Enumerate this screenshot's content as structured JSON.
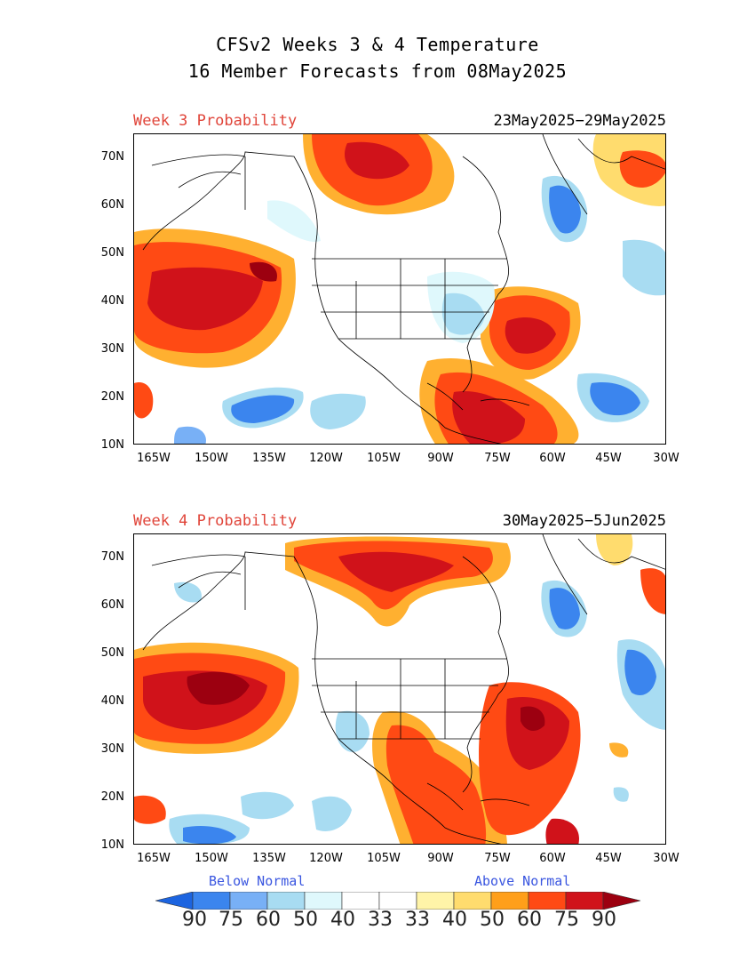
{
  "title_line1": "CFSv2 Weeks 3 & 4 Temperature",
  "title_line2": "16 Member Forecasts from 08May2025",
  "panels": [
    {
      "label": "Week 3 Probability",
      "dates": "23May2025−29May2025"
    },
    {
      "label": "Week 4 Probability",
      "dates": "30May2025−5Jun2025"
    }
  ],
  "y_ticks": [
    "70N",
    "60N",
    "50N",
    "40N",
    "30N",
    "20N",
    "10N"
  ],
  "x_ticks": [
    "165W",
    "150W",
    "135W",
    "120W",
    "105W",
    "90W",
    "75W",
    "60W",
    "45W",
    "30W"
  ],
  "legend": {
    "below_label": "Below Normal",
    "above_label": "Above Normal",
    "values": [
      "90",
      "75",
      "60",
      "50",
      "40",
      "33",
      "33",
      "40",
      "50",
      "60",
      "75",
      "90"
    ],
    "colors": [
      "#1c64e0",
      "#3b85ee",
      "#78b0f6",
      "#a8dcf2",
      "#dff8fc",
      "#ffffff",
      "#ffffff",
      "#fff4a8",
      "#ffdc6e",
      "#ff9f1a",
      "#ff4a14",
      "#d0121a",
      "#9c0010"
    ]
  }
}
